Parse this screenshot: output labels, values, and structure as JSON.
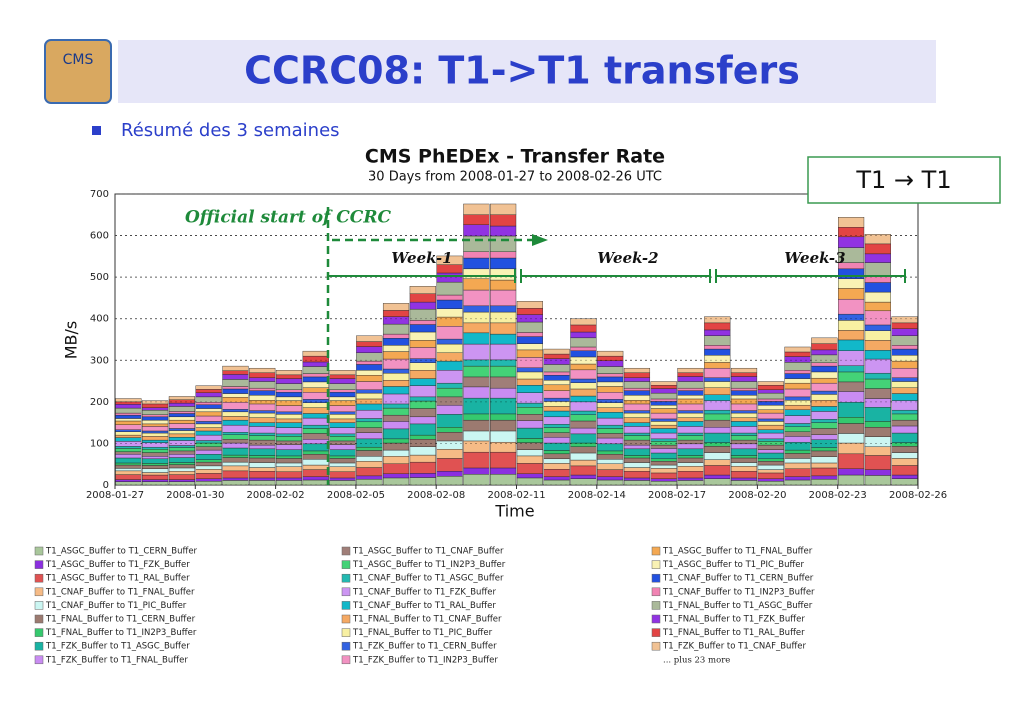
{
  "slide": {
    "title": "CCRC08: T1->T1 transfers",
    "logo": "CMS",
    "bullet": "Résumé des 3 semaines",
    "badge": "T1 → T1"
  },
  "chart_data": {
    "type": "stacked_bar",
    "title": "CMS PhEDEx - Transfer Rate",
    "subtitle": "30 Days from 2008-01-27 to 2008-02-26 UTC",
    "x_label": "Time",
    "y_label": "MB/s",
    "xticks": [
      "2008-01-27",
      "2008-01-30",
      "2008-02-02",
      "2008-02-05",
      "2008-02-08",
      "2008-02-11",
      "2008-02-14",
      "2008-02-17",
      "2008-02-20",
      "2008-02-23",
      "2008-02-26"
    ],
    "ylim": [
      0,
      700
    ],
    "yticks": [
      0,
      100,
      200,
      300,
      400,
      500,
      600,
      700
    ],
    "grid": true,
    "annotations": {
      "start": "Official start of CCRC",
      "week1": "Week-1",
      "week2": "Week-2",
      "week3": "Week-3"
    },
    "legend_note": "... plus 23 more",
    "series": [
      {
        "name": "T1_ASGC_Buffer to T1_CERN_Buffer",
        "color": "#a9c79b",
        "values": [
          8,
          8,
          8,
          9,
          11,
          11,
          11,
          12,
          11,
          14,
          17,
          18,
          21,
          26,
          26,
          17,
          12,
          15,
          12,
          11,
          9,
          11,
          15,
          11,
          9,
          12,
          14,
          24,
          23,
          15
        ]
      },
      {
        "name": "T1_ASGC_Buffer to T1_FZK_Buffer",
        "color": "#8b2fe0",
        "values": [
          5,
          5,
          5,
          6,
          6,
          6,
          6,
          8,
          6,
          8,
          10,
          10,
          12,
          15,
          15,
          10,
          8,
          9,
          8,
          6,
          6,
          6,
          9,
          6,
          6,
          8,
          8,
          15,
          14,
          9
        ]
      },
      {
        "name": "T1_ASGC_Buffer to T1_RAL_Buffer",
        "color": "#e05252",
        "values": [
          12,
          11,
          12,
          13,
          17,
          16,
          15,
          17,
          15,
          20,
          24,
          27,
          31,
          38,
          38,
          25,
          18,
          22,
          17,
          16,
          14,
          16,
          23,
          16,
          14,
          19,
          19,
          36,
          34,
          23
        ]
      },
      {
        "name": "T1_CNAF_Buffer to T1_FNAL_Buffer",
        "color": "#f6bb86",
        "values": [
          9,
          6,
          8,
          10,
          12,
          9,
          12,
          11,
          12,
          15,
          18,
          17,
          22,
          27,
          24,
          18,
          14,
          14,
          14,
          9,
          11,
          12,
          14,
          12,
          8,
          14,
          12,
          26,
          21,
          17
        ]
      },
      {
        "name": "T1_CNAF_Buffer to T1_PIC_Buffer",
        "color": "#cbf6f2",
        "values": [
          6,
          9,
          8,
          8,
          9,
          12,
          9,
          14,
          9,
          12,
          15,
          20,
          20,
          24,
          27,
          15,
          11,
          17,
          11,
          12,
          8,
          9,
          17,
          9,
          11,
          11,
          15,
          23,
          24,
          14
        ]
      },
      {
        "name": "T1_FNAL_Buffer to T1_CERN_Buffer",
        "color": "#9c7a70",
        "values": [
          8,
          8,
          8,
          9,
          11,
          11,
          11,
          12,
          11,
          14,
          17,
          18,
          21,
          26,
          26,
          17,
          12,
          15,
          12,
          11,
          9,
          11,
          15,
          11,
          9,
          12,
          14,
          24,
          23,
          15
        ]
      },
      {
        "name": "T1_FNAL_Buffer to T1_IN2P3_Buffer",
        "color": "#35c96e",
        "values": [
          5,
          5,
          5,
          6,
          6,
          6,
          6,
          8,
          6,
          8,
          10,
          10,
          12,
          15,
          15,
          10,
          8,
          9,
          8,
          6,
          6,
          6,
          9,
          6,
          6,
          8,
          8,
          15,
          14,
          9
        ]
      },
      {
        "name": "T1_FZK_Buffer to T1_ASGC_Buffer",
        "color": "#19b3a3",
        "values": [
          12,
          11,
          12,
          13,
          17,
          16,
          15,
          17,
          15,
          20,
          24,
          27,
          31,
          38,
          38,
          25,
          18,
          22,
          17,
          16,
          14,
          16,
          23,
          16,
          14,
          19,
          19,
          36,
          34,
          23
        ]
      },
      {
        "name": "T1_FZK_Buffer to T1_FNAL_Buffer",
        "color": "#c98cf2",
        "values": [
          9,
          6,
          8,
          10,
          12,
          9,
          12,
          11,
          12,
          15,
          18,
          17,
          22,
          27,
          24,
          18,
          14,
          14,
          14,
          9,
          11,
          12,
          14,
          12,
          8,
          14,
          12,
          26,
          21,
          17
        ]
      },
      {
        "name": "T1_ASGC_Buffer to T1_CNAF_Buffer",
        "color": "#a07e78",
        "values": [
          6,
          9,
          8,
          8,
          9,
          12,
          9,
          14,
          9,
          12,
          15,
          20,
          20,
          24,
          27,
          15,
          11,
          17,
          11,
          12,
          8,
          9,
          17,
          9,
          11,
          11,
          15,
          23,
          24,
          14
        ]
      },
      {
        "name": "T1_ASGC_Buffer to T1_IN2P3_Buffer",
        "color": "#44d277",
        "values": [
          8,
          8,
          8,
          9,
          11,
          11,
          11,
          12,
          11,
          14,
          17,
          18,
          21,
          26,
          26,
          17,
          12,
          15,
          12,
          11,
          9,
          11,
          15,
          11,
          9,
          12,
          14,
          24,
          23,
          15
        ]
      },
      {
        "name": "T1_CNAF_Buffer to T1_ASGC_Buffer",
        "color": "#22b9b1",
        "values": [
          5,
          5,
          5,
          6,
          6,
          6,
          6,
          8,
          6,
          8,
          10,
          10,
          12,
          15,
          15,
          10,
          8,
          9,
          8,
          6,
          6,
          6,
          9,
          6,
          6,
          8,
          8,
          15,
          14,
          9
        ]
      },
      {
        "name": "T1_CNAF_Buffer to T1_FZK_Buffer",
        "color": "#cc95f2",
        "values": [
          12,
          11,
          12,
          13,
          17,
          16,
          15,
          17,
          15,
          20,
          24,
          27,
          31,
          38,
          38,
          25,
          18,
          22,
          17,
          16,
          14,
          16,
          23,
          16,
          14,
          19,
          19,
          36,
          34,
          23
        ]
      },
      {
        "name": "T1_CNAF_Buffer to T1_RAL_Buffer",
        "color": "#12b8c9",
        "values": [
          9,
          6,
          8,
          10,
          12,
          9,
          12,
          11,
          12,
          15,
          18,
          17,
          22,
          27,
          24,
          18,
          14,
          14,
          14,
          9,
          11,
          12,
          14,
          12,
          8,
          14,
          12,
          26,
          21,
          17
        ]
      },
      {
        "name": "T1_FNAL_Buffer to T1_CNAF_Buffer",
        "color": "#f5a963",
        "values": [
          6,
          9,
          8,
          8,
          9,
          12,
          9,
          14,
          9,
          12,
          15,
          20,
          20,
          24,
          27,
          15,
          11,
          17,
          11,
          12,
          8,
          9,
          17,
          9,
          11,
          11,
          15,
          23,
          24,
          14
        ]
      },
      {
        "name": "T1_FNAL_Buffer to T1_PIC_Buffer",
        "color": "#f8f0a2",
        "values": [
          8,
          8,
          8,
          9,
          11,
          11,
          11,
          12,
          11,
          14,
          17,
          18,
          21,
          26,
          26,
          17,
          12,
          15,
          12,
          11,
          9,
          11,
          15,
          11,
          9,
          12,
          14,
          24,
          23,
          15
        ]
      },
      {
        "name": "T1_FZK_Buffer to T1_CERN_Buffer",
        "color": "#3262e2",
        "values": [
          5,
          5,
          5,
          6,
          6,
          6,
          6,
          8,
          6,
          8,
          10,
          10,
          12,
          15,
          15,
          10,
          8,
          9,
          8,
          6,
          6,
          6,
          9,
          6,
          6,
          8,
          8,
          15,
          14,
          9
        ]
      },
      {
        "name": "T1_FZK_Buffer to T1_IN2P3_Buffer",
        "color": "#f292c2",
        "values": [
          12,
          11,
          12,
          13,
          17,
          16,
          15,
          17,
          15,
          20,
          24,
          27,
          31,
          38,
          38,
          25,
          18,
          22,
          17,
          16,
          14,
          16,
          23,
          16,
          14,
          19,
          19,
          36,
          34,
          23
        ]
      },
      {
        "name": "T1_ASGC_Buffer to T1_FNAL_Buffer",
        "color": "#f4a852",
        "values": [
          9,
          6,
          8,
          10,
          12,
          9,
          12,
          11,
          12,
          15,
          18,
          17,
          22,
          27,
          24,
          18,
          14,
          14,
          14,
          9,
          11,
          12,
          14,
          12,
          8,
          14,
          12,
          26,
          21,
          17
        ]
      },
      {
        "name": "T1_ASGC_Buffer to T1_PIC_Buffer",
        "color": "#f9f2b4",
        "values": [
          6,
          9,
          8,
          8,
          9,
          12,
          9,
          14,
          9,
          12,
          15,
          20,
          20,
          24,
          27,
          15,
          11,
          17,
          11,
          12,
          8,
          9,
          17,
          9,
          11,
          11,
          15,
          23,
          24,
          14
        ]
      },
      {
        "name": "T1_CNAF_Buffer to T1_CERN_Buffer",
        "color": "#2251e0",
        "values": [
          8,
          8,
          8,
          9,
          11,
          11,
          11,
          12,
          11,
          14,
          17,
          18,
          21,
          26,
          26,
          17,
          12,
          15,
          12,
          11,
          9,
          11,
          15,
          11,
          9,
          12,
          14,
          24,
          23,
          15
        ]
      },
      {
        "name": "T1_CNAF_Buffer to T1_IN2P3_Buffer",
        "color": "#f183b3",
        "values": [
          5,
          5,
          5,
          6,
          6,
          6,
          6,
          8,
          6,
          8,
          10,
          10,
          12,
          15,
          15,
          10,
          8,
          9,
          8,
          6,
          6,
          6,
          9,
          6,
          6,
          8,
          8,
          15,
          14,
          9
        ]
      },
      {
        "name": "T1_FNAL_Buffer to T1_ASGC_Buffer",
        "color": "#aab99a",
        "values": [
          12,
          11,
          12,
          13,
          17,
          16,
          15,
          17,
          15,
          20,
          24,
          27,
          31,
          38,
          38,
          25,
          18,
          22,
          17,
          16,
          14,
          16,
          23,
          16,
          14,
          19,
          19,
          36,
          34,
          23
        ]
      },
      {
        "name": "T1_FNAL_Buffer to T1_FZK_Buffer",
        "color": "#9133e2",
        "values": [
          9,
          6,
          8,
          10,
          12,
          9,
          12,
          11,
          12,
          15,
          18,
          17,
          22,
          27,
          24,
          18,
          14,
          14,
          14,
          9,
          11,
          12,
          14,
          12,
          8,
          14,
          12,
          26,
          21,
          17
        ]
      },
      {
        "name": "T1_FNAL_Buffer to T1_RAL_Buffer",
        "color": "#e24444",
        "values": [
          6,
          9,
          8,
          8,
          9,
          12,
          9,
          14,
          9,
          12,
          15,
          20,
          20,
          24,
          27,
          15,
          11,
          17,
          11,
          12,
          8,
          9,
          17,
          9,
          11,
          11,
          15,
          23,
          24,
          14
        ]
      },
      {
        "name": "T1_FZK_Buffer to T1_CNAF_Buffer",
        "color": "#f1c294",
        "values": [
          8,
          8,
          8,
          9,
          11,
          11,
          11,
          12,
          11,
          14,
          17,
          18,
          21,
          26,
          26,
          17,
          12,
          15,
          12,
          11,
          9,
          11,
          15,
          11,
          9,
          12,
          14,
          24,
          23,
          15
        ]
      }
    ]
  }
}
